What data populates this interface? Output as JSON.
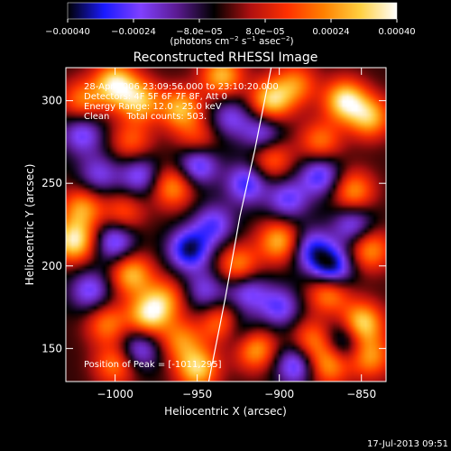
{
  "chart_data": {
    "type": "heatmap",
    "title": "Reconstructed RHESSI Image",
    "xlabel": "Heliocentric X (arcsec)",
    "ylabel": "Heliocentric Y (arcsec)",
    "xlim": [
      -1030,
      -835
    ],
    "ylim": [
      130,
      320
    ],
    "xticks": [
      -1000,
      -950,
      -900,
      -850
    ],
    "xtick_labels": [
      "−1000",
      "−950",
      "−900",
      "−850"
    ],
    "yticks": [
      150,
      200,
      250,
      300
    ],
    "ytick_labels": [
      "150",
      "200",
      "250",
      "300"
    ],
    "colorbar": {
      "range": [
        -0.0004,
        0.0004
      ],
      "ticks": [
        -0.0004,
        -0.00024,
        -8e-05,
        8e-05,
        0.00024,
        0.0004
      ],
      "tick_labels": [
        "−0.00040",
        "−0.00024",
        "−8.0e−05",
        "8.0e−05",
        "0.00024",
        "0.00040"
      ],
      "units_parts": [
        "(photons cm",
        "−2",
        " s",
        "−1",
        " asec",
        "−2",
        ")"
      ],
      "colormap": [
        "#000000",
        "#1a1aff",
        "#8040ff",
        "#5a1a90",
        "#000000",
        "#b01010",
        "#ff3000",
        "#ff8000",
        "#ffd040",
        "#ffffff"
      ]
    },
    "annotations": [
      "28-Apr-2006 23:09:56.000 to 23:10:20.000",
      "Detectors: 4F 5F 6F 7F 8F, Att 0",
      "Energy Range: 12.0 - 25.0 keV",
      "Clean      Total counts: 503."
    ],
    "peak_label": "Position of Peak = [-1011,295]",
    "limb_curve": [
      [
        -943,
        130
      ],
      [
        -933,
        180
      ],
      [
        -924,
        230
      ],
      [
        -915,
        270
      ],
      [
        -905,
        320
      ]
    ],
    "blobs": [
      [
        -1000,
        310,
        1.0
      ],
      [
        -985,
        300,
        0.8
      ],
      [
        -1020,
        300,
        0.6
      ],
      [
        -960,
        295,
        0.8
      ],
      [
        -935,
        315,
        0.8
      ],
      [
        -905,
        300,
        0.9
      ],
      [
        -890,
        310,
        0.6
      ],
      [
        -860,
        300,
        1.0
      ],
      [
        -845,
        290,
        0.8
      ],
      [
        -990,
        275,
        0.5
      ],
      [
        -950,
        275,
        0.5
      ],
      [
        -905,
        265,
        0.6
      ],
      [
        -875,
        275,
        0.6
      ],
      [
        -855,
        245,
        0.7
      ],
      [
        -965,
        248,
        0.7
      ],
      [
        -1020,
        235,
        0.7
      ],
      [
        -1025,
        215,
        1.0
      ],
      [
        -995,
        232,
        0.5
      ],
      [
        -990,
        195,
        0.8
      ],
      [
        -970,
        180,
        0.6
      ],
      [
        -925,
        200,
        0.7
      ],
      [
        -900,
        215,
        0.8
      ],
      [
        -870,
        185,
        0.8
      ],
      [
        -845,
        210,
        0.7
      ],
      [
        -1005,
        165,
        0.6
      ],
      [
        -980,
        170,
        0.9
      ],
      [
        -960,
        155,
        0.6
      ],
      [
        -935,
        165,
        0.7
      ],
      [
        -915,
        150,
        0.8
      ],
      [
        -880,
        155,
        0.6
      ],
      [
        -850,
        165,
        1.0
      ],
      [
        -1000,
        140,
        0.6
      ],
      [
        -950,
        138,
        0.9
      ],
      [
        -870,
        140,
        0.7
      ],
      [
        -845,
        145,
        0.7
      ],
      [
        -1020,
        280,
        -0.6
      ],
      [
        -985,
        255,
        -0.6
      ],
      [
        -950,
        262,
        -0.8
      ],
      [
        -920,
        250,
        -0.7
      ],
      [
        -930,
        290,
        -0.5
      ],
      [
        -875,
        255,
        -0.7
      ],
      [
        -895,
        240,
        -0.6
      ],
      [
        -1000,
        215,
        -0.7
      ],
      [
        -955,
        210,
        -0.9
      ],
      [
        -940,
        225,
        -0.6
      ],
      [
        -920,
        185,
        -0.6
      ],
      [
        -880,
        210,
        -0.7
      ],
      [
        -868,
        198,
        -1.0
      ],
      [
        -855,
        225,
        -0.6
      ],
      [
        -1015,
        185,
        -0.6
      ],
      [
        -985,
        150,
        -0.6
      ],
      [
        -945,
        185,
        -0.5
      ],
      [
        -925,
        160,
        -0.5
      ],
      [
        -900,
        175,
        -0.6
      ],
      [
        -860,
        155,
        -0.6
      ],
      [
        -890,
        140,
        -0.7
      ],
      [
        -910,
        280,
        -0.6
      ],
      [
        -1010,
        255,
        -0.5
      ]
    ]
  },
  "footer": {
    "date": "17-Jul-2013 09:51"
  }
}
